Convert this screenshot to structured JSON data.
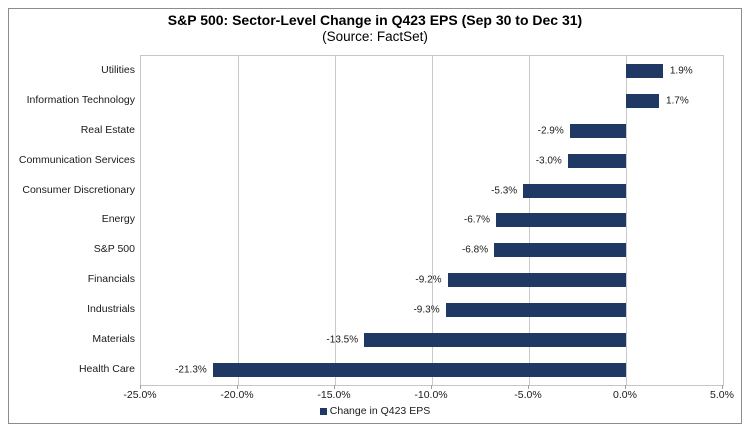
{
  "title": "S&P 500: Sector-Level Change in Q423 EPS (Sep 30 to Dec 31)",
  "subtitle": "(Source: FactSet)",
  "legend": {
    "marker_icon": "square-icon",
    "label": "Change in Q423 EPS"
  },
  "colors": {
    "bar": "#1f3864",
    "grid": "#c9c9c9",
    "plot_border": "#c6c6c6",
    "outer_border": "#8c8c8c",
    "text": "#1a1a1a"
  },
  "chart_data": {
    "type": "bar",
    "orientation": "horizontal",
    "title": "S&P 500: Sector-Level Change in Q423 EPS (Sep 30 to Dec 31)",
    "subtitle": "(Source: FactSet)",
    "xlabel": "",
    "ylabel": "",
    "categories": [
      "Utilities",
      "Information Technology",
      "Real Estate",
      "Communication Services",
      "Consumer Discretionary",
      "Energy",
      "S&P 500",
      "Financials",
      "Industrials",
      "Materials",
      "Health Care"
    ],
    "values": [
      1.9,
      1.7,
      -2.9,
      -3.0,
      -5.3,
      -6.7,
      -6.8,
      -9.2,
      -9.3,
      -13.5,
      -21.3
    ],
    "value_labels": [
      "1.9%",
      "1.7%",
      "-2.9%",
      "-3.0%",
      "-5.3%",
      "-6.7%",
      "-6.8%",
      "-9.2%",
      "-9.3%",
      "-13.5%",
      "-21.3%"
    ],
    "series": [
      {
        "name": "Change in Q423 EPS",
        "values": [
          1.9,
          1.7,
          -2.9,
          -3.0,
          -5.3,
          -6.7,
          -6.8,
          -9.2,
          -9.3,
          -13.5,
          -21.3
        ]
      }
    ],
    "xlim": [
      -25,
      5
    ],
    "xticks": [
      -25,
      -20,
      -15,
      -10,
      -5,
      0,
      5
    ],
    "xtick_labels": [
      "-25.0%",
      "-20.0%",
      "-15.0%",
      "-10.0%",
      "-5.0%",
      "0.0%",
      "5.0%"
    ],
    "grid": true,
    "legend_position": "bottom"
  }
}
